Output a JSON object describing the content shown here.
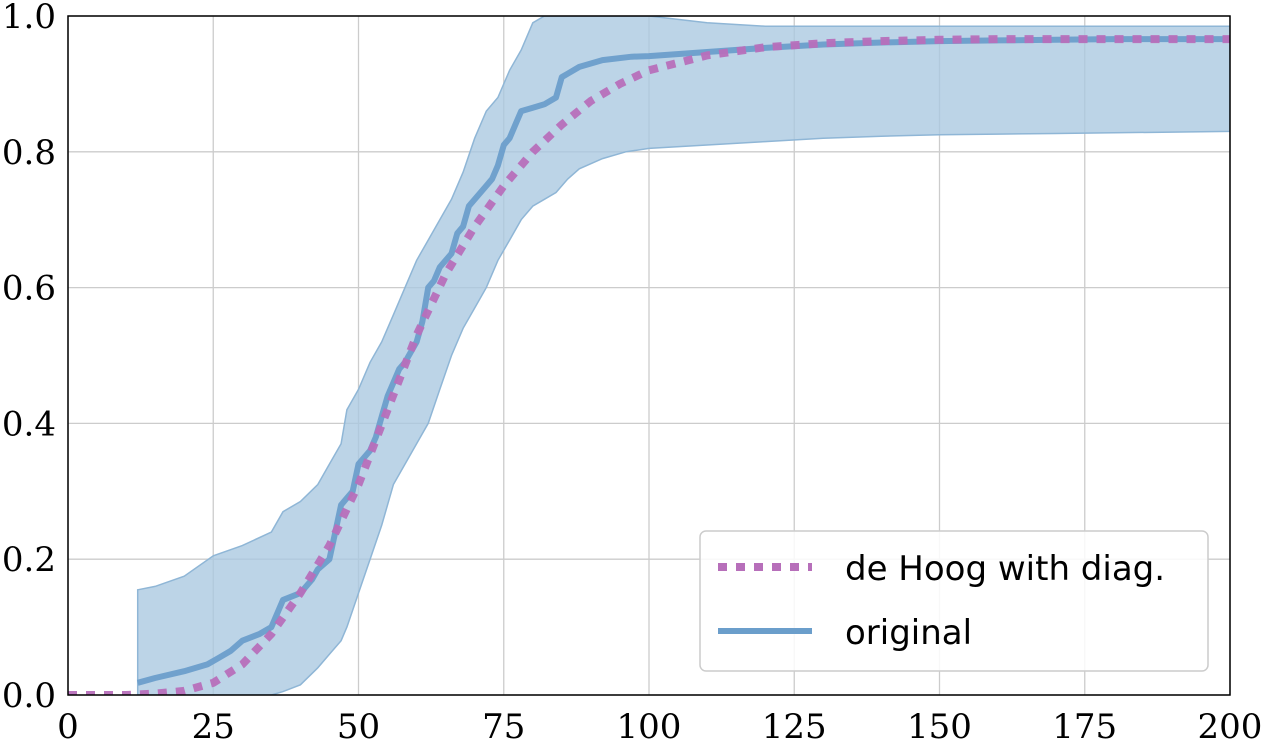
{
  "chart_data": {
    "type": "line",
    "title": "",
    "xlabel": "",
    "ylabel": "",
    "xlim": [
      0,
      200
    ],
    "ylim": [
      0,
      1.0
    ],
    "grid": true,
    "legend_position": "bottom-right",
    "x_ticks": [
      0,
      25,
      50,
      75,
      100,
      125,
      150,
      175,
      200
    ],
    "x_tick_labels": [
      "0",
      "25",
      "50",
      "75",
      "100",
      "125",
      "150",
      "175",
      "200"
    ],
    "y_ticks": [
      0,
      0.2,
      0.4,
      0.6,
      0.8,
      1.0
    ],
    "y_tick_labels": [
      "0.0",
      "0.2",
      "0.4",
      "0.6",
      "0.8",
      "1.0"
    ],
    "band": {
      "color": "#a9c8e0",
      "x": [
        12,
        15,
        20,
        25,
        30,
        35,
        37,
        40,
        43,
        45,
        47,
        48,
        50,
        52,
        54,
        56,
        58,
        60,
        62,
        64,
        66,
        68,
        70,
        72,
        74,
        76,
        78,
        80,
        82,
        84,
        86,
        88,
        92,
        96,
        100,
        110,
        120,
        130,
        140,
        150,
        160,
        170,
        180,
        190,
        200
      ],
      "upper": [
        0.155,
        0.16,
        0.175,
        0.205,
        0.22,
        0.24,
        0.27,
        0.285,
        0.31,
        0.34,
        0.37,
        0.42,
        0.45,
        0.49,
        0.52,
        0.56,
        0.6,
        0.64,
        0.67,
        0.7,
        0.73,
        0.77,
        0.82,
        0.86,
        0.88,
        0.92,
        0.95,
        0.99,
        1.0,
        1.0,
        1.0,
        1.0,
        1.0,
        1.0,
        1.0,
        0.99,
        0.985,
        0.985,
        0.985,
        0.985,
        0.985,
        0.985,
        0.985,
        0.985,
        0.985
      ],
      "lower": [
        0.0,
        0.0,
        0.0,
        0.0,
        0.0,
        0.0,
        0.005,
        0.015,
        0.04,
        0.06,
        0.08,
        0.1,
        0.15,
        0.2,
        0.25,
        0.31,
        0.34,
        0.37,
        0.4,
        0.45,
        0.5,
        0.54,
        0.57,
        0.6,
        0.64,
        0.67,
        0.7,
        0.72,
        0.73,
        0.74,
        0.76,
        0.775,
        0.79,
        0.8,
        0.805,
        0.81,
        0.815,
        0.82,
        0.823,
        0.825,
        0.826,
        0.827,
        0.828,
        0.829,
        0.83
      ]
    },
    "series": [
      {
        "name": "de Hoog with diag.",
        "color": "#b76fba",
        "style": "dotted",
        "x": [
          0,
          5,
          10,
          15,
          20,
          25,
          30,
          35,
          40,
          45,
          50,
          55,
          60,
          65,
          70,
          75,
          80,
          85,
          90,
          95,
          100,
          110,
          120,
          130,
          140,
          150,
          160,
          170,
          180,
          190,
          200
        ],
        "y": [
          0.0,
          0.0,
          0.0,
          0.002,
          0.006,
          0.018,
          0.045,
          0.09,
          0.15,
          0.22,
          0.31,
          0.42,
          0.53,
          0.62,
          0.69,
          0.75,
          0.8,
          0.84,
          0.875,
          0.9,
          0.92,
          0.942,
          0.954,
          0.96,
          0.963,
          0.965,
          0.966,
          0.966,
          0.966,
          0.966,
          0.966
        ]
      },
      {
        "name": "original",
        "color": "#6b9ecb",
        "style": "solid",
        "x": [
          12,
          15,
          20,
          24,
          26,
          28,
          30,
          33,
          35,
          37,
          40,
          42,
          43,
          45,
          46,
          47,
          48,
          49,
          50,
          52,
          53,
          54,
          55,
          56,
          57,
          58,
          60,
          61,
          62,
          63,
          64,
          66,
          67,
          68,
          69,
          70,
          72,
          73,
          74,
          75,
          76,
          77,
          78,
          80,
          82,
          84,
          85,
          86,
          88,
          92,
          97,
          100,
          110,
          120,
          130,
          140,
          150,
          160,
          170,
          180,
          190,
          200
        ],
        "y": [
          0.018,
          0.025,
          0.035,
          0.045,
          0.055,
          0.065,
          0.08,
          0.09,
          0.1,
          0.14,
          0.15,
          0.17,
          0.185,
          0.2,
          0.24,
          0.28,
          0.29,
          0.3,
          0.34,
          0.36,
          0.38,
          0.41,
          0.44,
          0.46,
          0.48,
          0.49,
          0.52,
          0.55,
          0.6,
          0.61,
          0.63,
          0.65,
          0.68,
          0.69,
          0.72,
          0.73,
          0.75,
          0.76,
          0.78,
          0.81,
          0.82,
          0.84,
          0.86,
          0.865,
          0.87,
          0.88,
          0.91,
          0.915,
          0.925,
          0.935,
          0.94,
          0.941,
          0.947,
          0.953,
          0.958,
          0.961,
          0.963,
          0.964,
          0.965,
          0.966,
          0.966,
          0.966
        ]
      }
    ],
    "legend": [
      "de Hoog with diag.",
      "original"
    ]
  }
}
